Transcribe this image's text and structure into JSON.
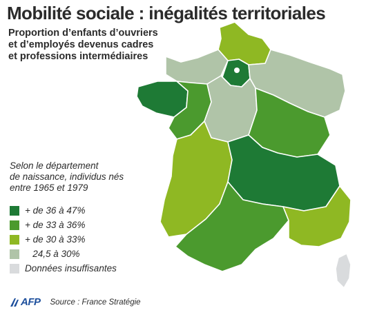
{
  "title": "Mobilité sociale : inégalités territoriales",
  "subtitle": [
    "Proportion d’enfants d’ouvriers",
    "et d’employés devenus cadres",
    "et professions intermédiaires"
  ],
  "department_note": [
    "Selon le département",
    "de naissance, individus nés",
    "entre 1965 et 1979"
  ],
  "legend": [
    {
      "label": "+ de 36 à 47%",
      "color": "#1e7a35"
    },
    {
      "label": "+ de 33 à 36%",
      "color": "#4b9a2e"
    },
    {
      "label": "+ de 30 à 33%",
      "color": "#8fb823"
    },
    {
      "label": "   24,5 à 30%",
      "color": "#b0c4a8"
    },
    {
      "label": "Données insuffisantes",
      "color": "#d9dbdd"
    }
  ],
  "footer": {
    "logo_text": "AFP",
    "source": "Source : France Stratégie"
  },
  "map": {
    "outline_color": "#ffffff",
    "regions": [
      {
        "name": "bretagne",
        "color": "#1e7a35"
      },
      {
        "name": "normandie",
        "color": "#b0c4a8"
      },
      {
        "name": "hauts-de-france",
        "color": "#8fb823"
      },
      {
        "name": "ile-de-france",
        "color": "#1e7a35"
      },
      {
        "name": "grand-est",
        "color": "#b0c4a8"
      },
      {
        "name": "pays-de-la-loire",
        "color": "#4b9a2e"
      },
      {
        "name": "centre",
        "color": "#b0c4a8"
      },
      {
        "name": "bourgogne-franche-comte",
        "color": "#4b9a2e"
      },
      {
        "name": "nouvelle-aquitaine",
        "color": "#8fb823"
      },
      {
        "name": "auvergne-rhone-alpes",
        "color": "#1e7a35"
      },
      {
        "name": "occitanie",
        "color": "#4b9a2e"
      },
      {
        "name": "provence",
        "color": "#8fb823"
      },
      {
        "name": "corse",
        "color": "#d9dbdd"
      }
    ]
  }
}
